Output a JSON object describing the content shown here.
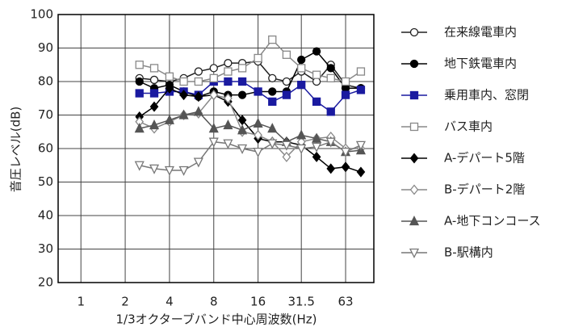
{
  "chart_data": {
    "type": "line",
    "x_label": "1/3オクターブバンド中心周波数(Hz)",
    "y_label": "音圧レベル(dB)",
    "x": [
      2.5,
      3.15,
      4,
      5,
      6.3,
      8,
      10,
      12.5,
      16,
      20,
      25,
      31.5,
      40,
      50,
      63,
      80
    ],
    "xlim": [
      0.7,
      98
    ],
    "xticks": [
      1,
      2,
      4,
      8,
      16,
      31.5,
      63
    ],
    "xscale": "log",
    "ylim": [
      20,
      100
    ],
    "yticks": [
      20,
      30,
      40,
      50,
      60,
      70,
      80,
      90,
      100
    ],
    "grid": true,
    "series": [
      {
        "name": "在来線電車内",
        "color": "#222222",
        "marker": "circle",
        "filled": false,
        "values": [
          81,
          80.5,
          80,
          81,
          83,
          84,
          85.5,
          85.5,
          86,
          81,
          80,
          83,
          80,
          85,
          79,
          78
        ]
      },
      {
        "name": "地下鉄電車内",
        "color": "#000000",
        "marker": "circle",
        "filled": true,
        "values": [
          80,
          78,
          79,
          77,
          75.5,
          77,
          76,
          76,
          77,
          77,
          77,
          86.5,
          89,
          84,
          78,
          78
        ]
      },
      {
        "name": "乗用車内、窓閉",
        "color": "#1a1aa0",
        "marker": "square",
        "filled": true,
        "values": [
          76.5,
          76.5,
          77,
          77,
          76,
          80,
          80,
          80,
          77,
          74,
          76,
          79,
          74,
          71,
          76,
          77.5
        ]
      },
      {
        "name": "バス車内",
        "color": "#888888",
        "marker": "square",
        "filled": false,
        "values": [
          85,
          84,
          81.5,
          80,
          80,
          81,
          83,
          84,
          87,
          92.5,
          88,
          84,
          82,
          81,
          80,
          83
        ]
      },
      {
        "name": "A-デパート5階",
        "color": "#000000",
        "marker": "diamond",
        "filled": true,
        "values": [
          69.5,
          72.5,
          78,
          76,
          75.5,
          76,
          74,
          68.5,
          63,
          62,
          62,
          61,
          57.5,
          54,
          54.5,
          53
        ]
      },
      {
        "name": "B-デパート2階",
        "color": "#888888",
        "marker": "diamond",
        "filled": false,
        "values": [
          68,
          66,
          68,
          70,
          70.5,
          76,
          75,
          65,
          64,
          62,
          57.5,
          62,
          63,
          63.5,
          60,
          60
        ]
      },
      {
        "name": "A-地下コンコース",
        "color": "#555555",
        "marker": "triangle",
        "filled": true,
        "values": [
          66,
          67,
          68.5,
          70,
          71,
          66,
          67,
          65.5,
          67.5,
          66,
          62,
          64,
          63,
          62,
          59,
          59.5
        ]
      },
      {
        "name": "B-駅構内",
        "color": "#777777",
        "marker": "triangle-down",
        "filled": false,
        "values": [
          55,
          54,
          53.5,
          53.5,
          56,
          62,
          61.5,
          60,
          59,
          61.5,
          61,
          60,
          60.5,
          62,
          59,
          61
        ]
      }
    ]
  }
}
